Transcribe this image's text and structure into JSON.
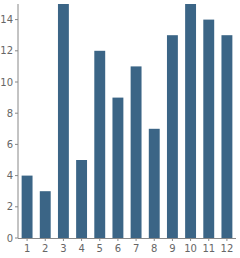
{
  "chart_data": {
    "type": "bar",
    "categories": [
      "1",
      "2",
      "3",
      "4",
      "5",
      "6",
      "7",
      "8",
      "9",
      "10",
      "11",
      "12"
    ],
    "values": [
      4,
      3,
      15,
      5,
      12,
      9,
      11,
      7,
      13,
      15,
      14,
      13
    ],
    "color": "#3b6586",
    "ylim": [
      0,
      15
    ],
    "yticks": [
      0,
      2,
      4,
      6,
      8,
      10,
      12,
      14
    ],
    "grid": false
  }
}
